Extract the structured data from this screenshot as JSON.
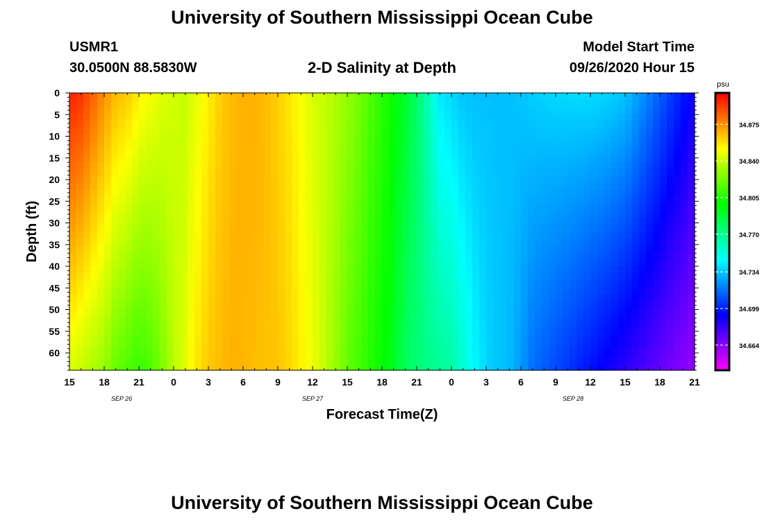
{
  "page": {
    "title_top": "University of Southern Mississippi Ocean Cube",
    "title_bottom": "University of Southern Mississippi Ocean Cube",
    "station": "USMR1",
    "location": "30.0500N 88.5830W",
    "plot_title": "2-D Salinity at Depth",
    "model_label": "Model Start Time",
    "model_time": "09/26/2020 Hour 15"
  },
  "chart_data": {
    "type": "heatmap",
    "title": "2-D Salinity at Depth",
    "xlabel": "Forecast Time(Z)",
    "ylabel": "Depth (ft)",
    "x_ticks": [
      "15",
      "18",
      "21",
      "0",
      "3",
      "6",
      "9",
      "12",
      "15",
      "18",
      "21",
      "0",
      "3",
      "6",
      "9",
      "12",
      "15",
      "18",
      "21"
    ],
    "x_tick_hours": [
      0,
      3,
      6,
      9,
      12,
      15,
      18,
      21,
      24,
      27,
      30,
      33,
      36,
      39,
      42,
      45,
      48,
      51,
      54
    ],
    "date_labels": [
      {
        "text": "SEP 26",
        "hour": 4.5
      },
      {
        "text": "SEP 27",
        "hour": 21
      },
      {
        "text": "SEP 28",
        "hour": 43.5
      }
    ],
    "xlim": [
      0,
      54
    ],
    "ylim": [
      0,
      64
    ],
    "y_ticks": [
      0,
      5,
      10,
      15,
      20,
      25,
      30,
      35,
      40,
      45,
      50,
      55,
      60
    ],
    "colorbar": {
      "unit": "psu",
      "range": [
        34.64,
        34.905
      ],
      "ticks": [
        "34.875",
        "34.840",
        "34.805",
        "34.770",
        "34.734",
        "34.699",
        "34.664"
      ],
      "tick_values": [
        34.875,
        34.84,
        34.805,
        34.77,
        34.734,
        34.699,
        34.664
      ]
    },
    "profile_hours": [
      0,
      1,
      2,
      3,
      4,
      5,
      6,
      7,
      8,
      9,
      10,
      11,
      12,
      13,
      14,
      15,
      16,
      17,
      18,
      19,
      20,
      21,
      22,
      23,
      24,
      25,
      26,
      27,
      28,
      29,
      30,
      31,
      32,
      33,
      34,
      35,
      36,
      37,
      38,
      39,
      40,
      42,
      44,
      46,
      48,
      50,
      52,
      54
    ],
    "surface_psu": [
      34.898,
      34.895,
      34.885,
      34.875,
      34.866,
      34.863,
      34.855,
      34.85,
      34.845,
      34.842,
      34.84,
      34.848,
      34.855,
      34.862,
      34.866,
      34.868,
      34.868,
      34.866,
      34.862,
      34.857,
      34.851,
      34.844,
      34.84,
      34.835,
      34.83,
      34.823,
      34.815,
      34.808,
      34.8,
      34.79,
      34.778,
      34.76,
      34.742,
      34.738,
      34.734,
      34.733,
      34.733,
      34.733,
      34.733,
      34.734,
      34.736,
      34.738,
      34.739,
      34.738,
      34.734,
      34.72,
      34.705,
      34.69
    ],
    "bottom_psu": [
      34.845,
      34.84,
      34.835,
      34.83,
      34.82,
      34.815,
      34.81,
      34.815,
      34.825,
      34.838,
      34.846,
      34.857,
      34.863,
      34.866,
      34.868,
      34.867,
      34.866,
      34.865,
      34.864,
      34.86,
      34.855,
      34.848,
      34.84,
      34.83,
      34.82,
      34.813,
      34.806,
      34.8,
      34.792,
      34.78,
      34.775,
      34.771,
      34.768,
      34.765,
      34.755,
      34.745,
      34.738,
      34.734,
      34.732,
      34.725,
      34.716,
      34.708,
      34.7,
      34.692,
      34.684,
      34.676,
      34.668,
      34.662
    ]
  }
}
